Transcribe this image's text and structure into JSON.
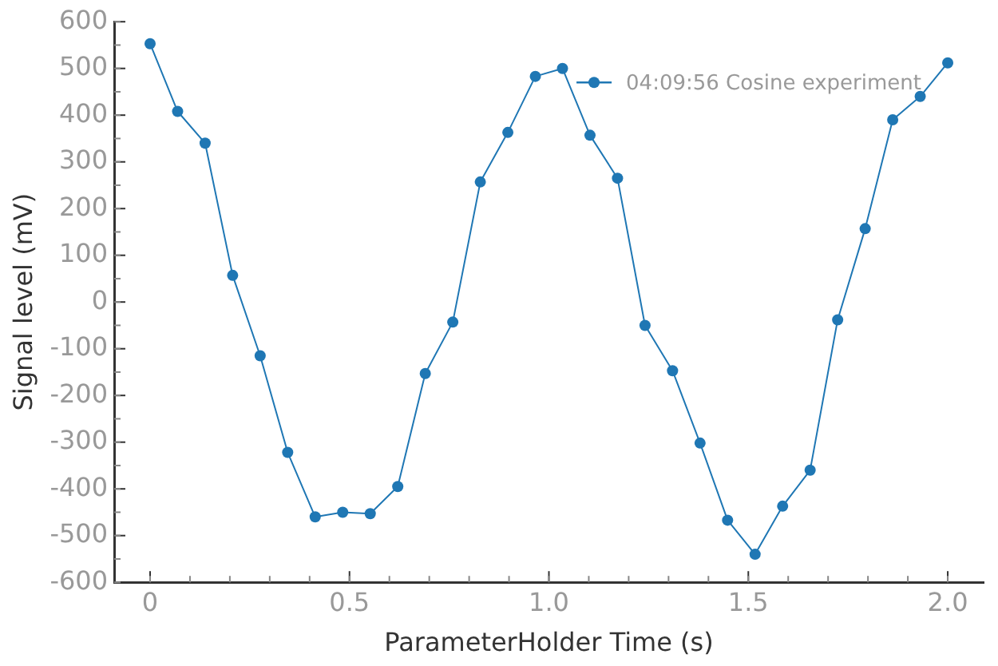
{
  "chart_data": {
    "type": "line",
    "xlabel": "ParameterHolder Time (s)",
    "ylabel": "Signal level (mV)",
    "x": [
      0,
      0.069,
      0.138,
      0.207,
      0.276,
      0.345,
      0.414,
      0.483,
      0.552,
      0.621,
      0.69,
      0.759,
      0.828,
      0.897,
      0.966,
      1.034,
      1.103,
      1.172,
      1.241,
      1.31,
      1.379,
      1.448,
      1.517,
      1.586,
      1.655,
      1.724,
      1.793,
      1.862,
      1.931,
      2
    ],
    "series": [
      {
        "name": "04:09:56 Cosine experiment",
        "color": "#1f77b4",
        "values": [
          553,
          408,
          340,
          57,
          -115,
          -322,
          -460,
          -450,
          -453,
          -395,
          -153,
          -43,
          257,
          363,
          483,
          500,
          357,
          265,
          -50,
          -147,
          -302,
          -467,
          -540,
          -437,
          -360,
          -38,
          157,
          390,
          440,
          512
        ]
      }
    ],
    "xlim": [
      -0.09,
      2.09
    ],
    "xticks": [
      {
        "value": 0,
        "label": "0"
      },
      0.5,
      {
        "value": 1,
        "label": "1.0"
      },
      1.5,
      {
        "value": 2,
        "label": "2.0"
      }
    ],
    "ylim": [
      -600,
      600
    ],
    "yticks": [
      -600,
      -500,
      -400,
      -300,
      -200,
      -100,
      0,
      100,
      200,
      300,
      400,
      500,
      600
    ],
    "grid": false,
    "legend": "top right",
    "marker": "circle",
    "line_style": "solid"
  }
}
